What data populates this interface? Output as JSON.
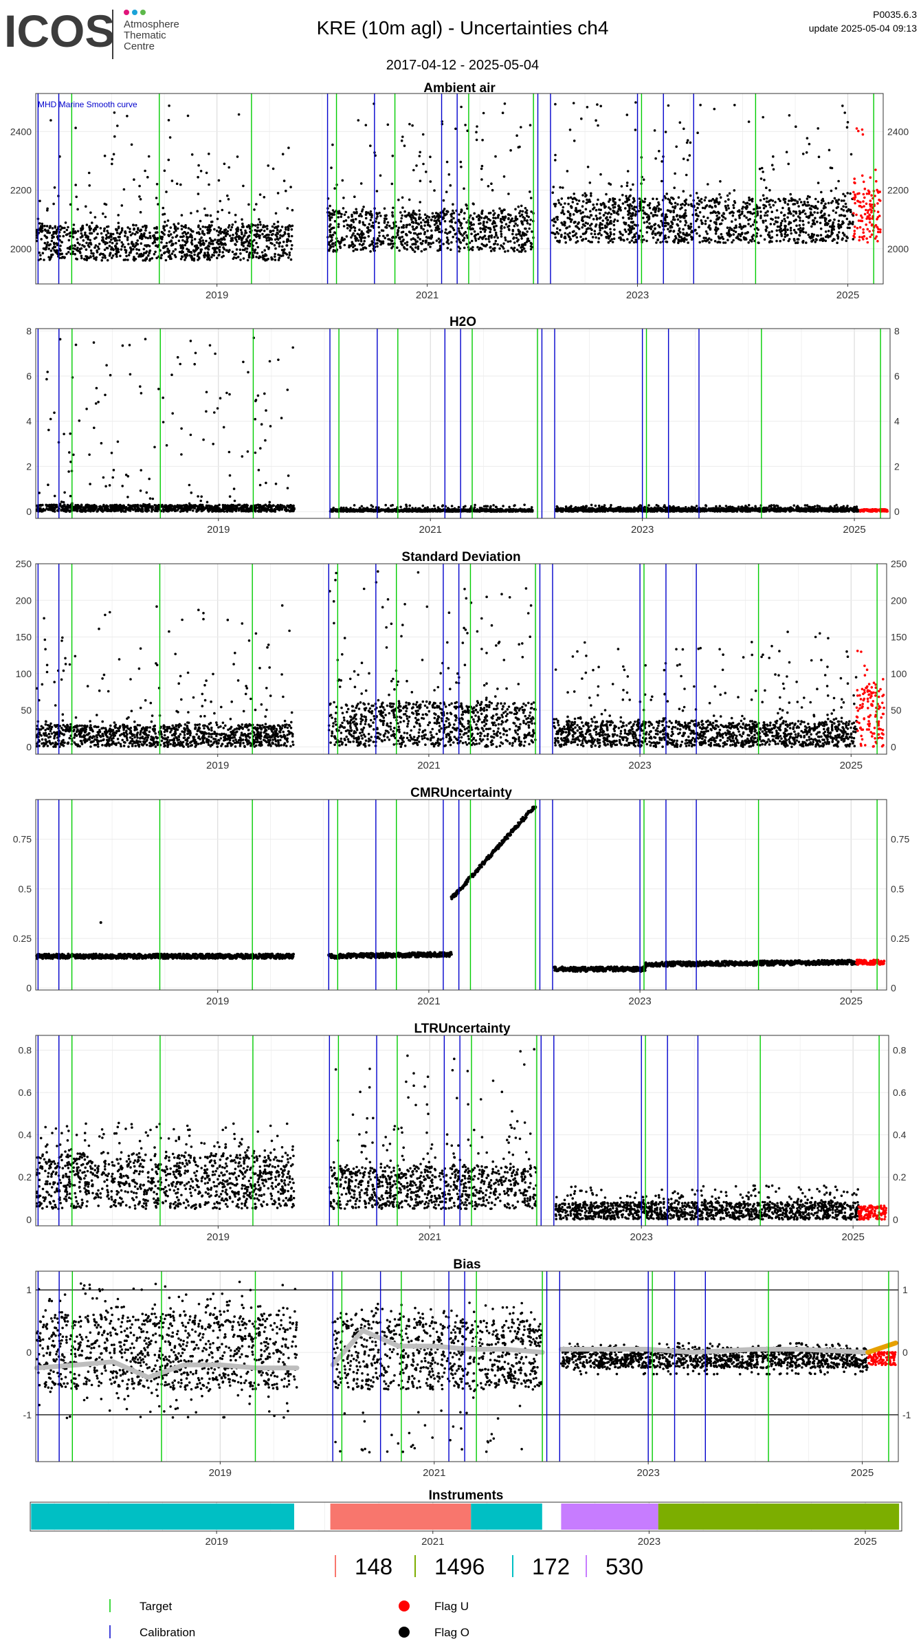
{
  "header": {
    "logo_text": "ICOS",
    "logo_sub": [
      "Atmosphere",
      "Thematic",
      "Centre"
    ],
    "title": "KRE  (10m agl) - Uncertainties ch4",
    "date_range": "2017-04-12 - 2025-05-04",
    "version": "P0035.6.3",
    "update": "update  2025-05-04 09:13"
  },
  "colors": {
    "target": "#00cc00",
    "calibration": "#0000cc",
    "flag_u": "#ff0000",
    "flag_o": "#000000",
    "smooth": "#bebebe",
    "smooth_recent": "#e6a000",
    "grid": "#ebebeb",
    "inst_148": "#f8766d",
    "inst_1496": "#7cae00",
    "inst_172": "#00bfc4",
    "inst_530": "#c77cff"
  },
  "panels": [
    {
      "title": "Ambient air",
      "note": "MHD Marine Smooth curve"
    },
    {
      "title": "H2O"
    },
    {
      "title": "Standard Deviation"
    },
    {
      "title": "CMRUncertainty"
    },
    {
      "title": "LTRUncertainty"
    },
    {
      "title": "Bias"
    },
    {
      "title": "Instruments"
    }
  ],
  "x_tick_labels": [
    "2019",
    "2021",
    "2023",
    "2025"
  ],
  "instrument_legend": [
    "148",
    "1496",
    "172",
    "530"
  ],
  "legend": {
    "target": "Target",
    "calibration": "Calibration",
    "flag_u": "Flag U",
    "flag_o": "Flag O"
  },
  "chart_data": [
    {
      "type": "scatter",
      "title": "Ambient air",
      "annotation": "MHD Marine Smooth curve",
      "xlim": [
        "2017-04-12",
        "2025-05-04"
      ],
      "ylim": [
        1880,
        2530
      ],
      "yticks": [
        2000,
        2200,
        2400
      ],
      "grid": true,
      "data_segments": [
        {
          "from": "2017-04-15",
          "to": "2019-09-20",
          "typical": [
            1960,
            2080
          ],
          "max": 2490
        },
        {
          "from": "2020-01-20",
          "to": "2022-01-05",
          "typical": [
            1990,
            2130
          ],
          "max": 2500
        },
        {
          "from": "2022-03-10",
          "to": "2025-01-20",
          "typical": [
            2020,
            2170
          ],
          "max": 2500
        },
        {
          "from": "2025-01-20",
          "to": "2025-04-25",
          "typical": [
            2020,
            2200
          ],
          "max": 2420,
          "flag": "U"
        }
      ]
    },
    {
      "type": "scatter",
      "title": "H2O",
      "xlim": [
        "2017-04-12",
        "2025-05-04"
      ],
      "ylim": [
        -0.3,
        8.1
      ],
      "yticks": [
        0,
        2,
        4,
        6,
        8
      ],
      "grid": true,
      "data_segments": [
        {
          "from": "2017-04-15",
          "to": "2019-09-20",
          "typical": [
            0,
            0.3
          ],
          "max": 7.7
        },
        {
          "from": "2020-01-20",
          "to": "2021-12-20",
          "typical": [
            0,
            0.1
          ],
          "max": 0.3
        },
        {
          "from": "2022-03-10",
          "to": "2025-01-20",
          "typical": [
            0,
            0.15
          ],
          "max": 0.3
        },
        {
          "from": "2025-01-20",
          "to": "2025-04-25",
          "typical": [
            0,
            0.1
          ],
          "max": 0.1,
          "flag": "U"
        }
      ]
    },
    {
      "type": "scatter",
      "title": "Standard Deviation",
      "xlim": [
        "2017-04-12",
        "2025-05-04"
      ],
      "ylim": [
        -10,
        250
      ],
      "yticks": [
        0,
        50,
        100,
        150,
        200,
        250
      ],
      "grid": true,
      "data_segments": [
        {
          "from": "2017-04-15",
          "to": "2019-09-20",
          "typical": [
            0,
            30
          ],
          "max": 195
        },
        {
          "from": "2020-01-20",
          "to": "2022-01-05",
          "typical": [
            0,
            60
          ],
          "max": 240
        },
        {
          "from": "2022-03-10",
          "to": "2025-01-20",
          "typical": [
            0,
            35
          ],
          "max": 160
        },
        {
          "from": "2025-01-20",
          "to": "2025-04-25",
          "typical": [
            0,
            80
          ],
          "max": 135,
          "flag": "U"
        }
      ]
    },
    {
      "type": "scatter",
      "title": "CMRUncertainty",
      "xlim": [
        "2017-04-12",
        "2025-05-04"
      ],
      "ylim": [
        -0.01,
        0.95
      ],
      "yticks": [
        0.0,
        0.25,
        0.5,
        0.75
      ],
      "grid": true,
      "data_segments": [
        {
          "from": "2017-04-15",
          "to": "2019-09-20",
          "start": 0.16,
          "end": 0.16,
          "max": 0.33
        },
        {
          "from": "2020-01-20",
          "to": "2021-03-20",
          "start": 0.16,
          "end": 0.17
        },
        {
          "from": "2021-03-20",
          "to": "2022-01-05",
          "start": 0.45,
          "end": 0.92
        },
        {
          "from": "2022-03-10",
          "to": "2023-01-20",
          "start": 0.095,
          "end": 0.095
        },
        {
          "from": "2023-01-20",
          "to": "2025-01-20",
          "start": 0.12,
          "end": 0.13
        },
        {
          "from": "2025-01-20",
          "to": "2025-04-25",
          "start": 0.13,
          "end": 0.13,
          "flag": "U"
        }
      ]
    },
    {
      "type": "scatter",
      "title": "LTRUncertainty",
      "xlim": [
        "2017-04-12",
        "2025-05-04"
      ],
      "ylim": [
        -0.03,
        0.87
      ],
      "yticks": [
        0.0,
        0.2,
        0.4,
        0.6,
        0.8
      ],
      "grid": true,
      "data_segments": [
        {
          "from": "2017-04-15",
          "to": "2019-09-20",
          "typical": [
            0.05,
            0.3
          ],
          "max": 0.46
        },
        {
          "from": "2020-01-20",
          "to": "2022-01-05",
          "typical": [
            0.05,
            0.25
          ],
          "max": 0.82
        },
        {
          "from": "2022-03-10",
          "to": "2025-01-20",
          "typical": [
            0.0,
            0.08
          ],
          "max": 0.16
        },
        {
          "from": "2025-01-20",
          "to": "2025-04-25",
          "typical": [
            0.0,
            0.06
          ],
          "max": 0.07,
          "flag": "U"
        }
      ]
    },
    {
      "type": "scatter",
      "title": "Bias",
      "xlim": [
        "2017-04-12",
        "2025-05-04"
      ],
      "ylim": [
        -1.75,
        1.3
      ],
      "yticks": [
        -1,
        0,
        1
      ],
      "grid": true,
      "hlines": [
        -1,
        1
      ],
      "data_segments": [
        {
          "from": "2017-04-15",
          "to": "2019-09-20",
          "typical": [
            -0.6,
            0.6
          ],
          "min": -1.05,
          "max": 1.15
        },
        {
          "from": "2020-01-20",
          "to": "2022-01-05",
          "typical": [
            -0.6,
            0.5
          ],
          "min": -1.6,
          "max": 0.8
        },
        {
          "from": "2022-03-10",
          "to": "2025-01-20",
          "typical": [
            -0.25,
            0.05
          ],
          "min": -0.35,
          "max": 0.15
        },
        {
          "from": "2025-01-20",
          "to": "2025-04-25",
          "typical": [
            -0.2,
            0.0
          ],
          "min": -0.2,
          "max": 0.0,
          "flag": "U"
        }
      ],
      "smooth_curve": {
        "x": [
          "2017-04-15",
          "2017-09-01",
          "2018-01-01",
          "2018-05-01",
          "2018-09-01",
          "2019-01-01",
          "2019-05-01",
          "2019-09-20",
          null,
          "2020-01-20",
          "2020-05-01",
          "2020-09-01",
          "2021-01-01",
          "2021-05-01",
          "2021-09-01",
          "2022-01-05",
          null,
          "2022-03-10",
          "2022-09-01",
          "2023-01-01",
          "2023-06-01",
          "2024-01-01",
          "2024-06-01",
          "2025-01-20",
          "2025-04-25"
        ],
        "y": [
          -0.25,
          -0.2,
          -0.15,
          -0.4,
          -0.2,
          -0.2,
          -0.25,
          -0.25,
          null,
          -0.2,
          0.35,
          0.1,
          0.1,
          0.05,
          0.05,
          0.0,
          null,
          0.05,
          0.05,
          0.05,
          0.0,
          0.05,
          0.05,
          0.0,
          0.15
        ]
      }
    },
    {
      "type": "bar",
      "title": "Instruments",
      "xlim": [
        "2017-04-12",
        "2025-05-04"
      ],
      "intervals": [
        {
          "instrument": "172",
          "from": "2017-04-15",
          "to": "2019-09-20"
        },
        {
          "instrument": "148",
          "from": "2020-01-20",
          "to": "2021-05-10"
        },
        {
          "instrument": "172",
          "from": "2021-05-10",
          "to": "2022-01-05"
        },
        {
          "instrument": "530",
          "from": "2022-03-10",
          "to": "2023-02-01"
        },
        {
          "instrument": "1496",
          "from": "2023-02-01",
          "to": "2025-04-25"
        }
      ]
    }
  ],
  "target_dates": [
    "2017-08-15",
    "2018-06-15",
    "2019-05-01",
    "2020-02-20",
    "2020-09-10",
    "2021-05-25",
    "2022-01-05",
    "2023-01-15",
    "2024-02-15",
    "2025-04-01"
  ],
  "calibration_dates": [
    "2017-04-20",
    "2017-07-01",
    "2020-01-20",
    "2020-07-01",
    "2021-02-20",
    "2021-04-15",
    "2022-01-20",
    "2022-03-05",
    "2023-01-01",
    "2023-04-01",
    "2023-07-15"
  ]
}
